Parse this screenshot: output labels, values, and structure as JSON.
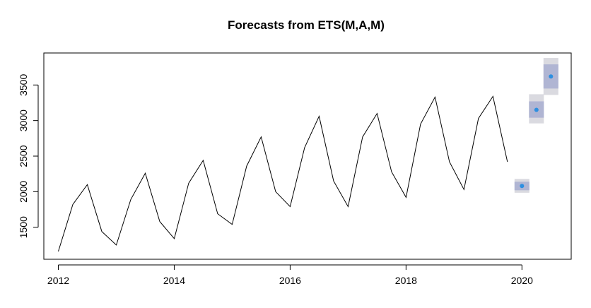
{
  "chart_data": {
    "type": "line",
    "title": "Forecasts from ETS(M,A,M)",
    "xlabel": "",
    "ylabel": "",
    "xlim": [
      2011.75,
      2020.85
    ],
    "ylim": [
      1050,
      3950
    ],
    "x_ticks": [
      2012,
      2014,
      2016,
      2018,
      2020
    ],
    "y_ticks": [
      1500,
      2000,
      2500,
      3000,
      3500
    ],
    "grid": false,
    "series": [
      {
        "x": [
          2012.0,
          2012.25,
          2012.5,
          2012.75,
          2013.0,
          2013.25,
          2013.5,
          2013.75,
          2014.0,
          2014.25,
          2014.5,
          2014.75,
          2015.0,
          2015.25,
          2015.5,
          2015.75,
          2016.0,
          2016.25,
          2016.5,
          2016.75,
          2017.0,
          2017.25,
          2017.5,
          2017.75,
          2018.0,
          2018.25,
          2018.5,
          2018.75,
          2019.0,
          2019.25,
          2019.5,
          2019.75
        ],
        "values": [
          1160,
          1820,
          2100,
          1440,
          1250,
          1890,
          2260,
          1580,
          1340,
          2120,
          2440,
          1690,
          1540,
          2360,
          2770,
          2000,
          1790,
          2620,
          3060,
          2150,
          1790,
          2770,
          3100,
          2280,
          1920,
          2950,
          3330,
          2420,
          2030,
          3030,
          3340,
          2420
        ],
        "color": "#000000"
      }
    ],
    "forecast": {
      "x": [
        2020.0,
        2020.25,
        2020.5
      ],
      "mean": [
        2080,
        3150,
        3620
      ],
      "lo80": [
        2020,
        3040,
        3450
      ],
      "hi80": [
        2140,
        3270,
        3790
      ],
      "lo95": [
        1985,
        2960,
        3360
      ],
      "hi95": [
        2180,
        3370,
        3880
      ],
      "point_color": "#2d8fe0",
      "band80_color": "#b0b5d3",
      "band95_color": "#dadae0"
    }
  }
}
